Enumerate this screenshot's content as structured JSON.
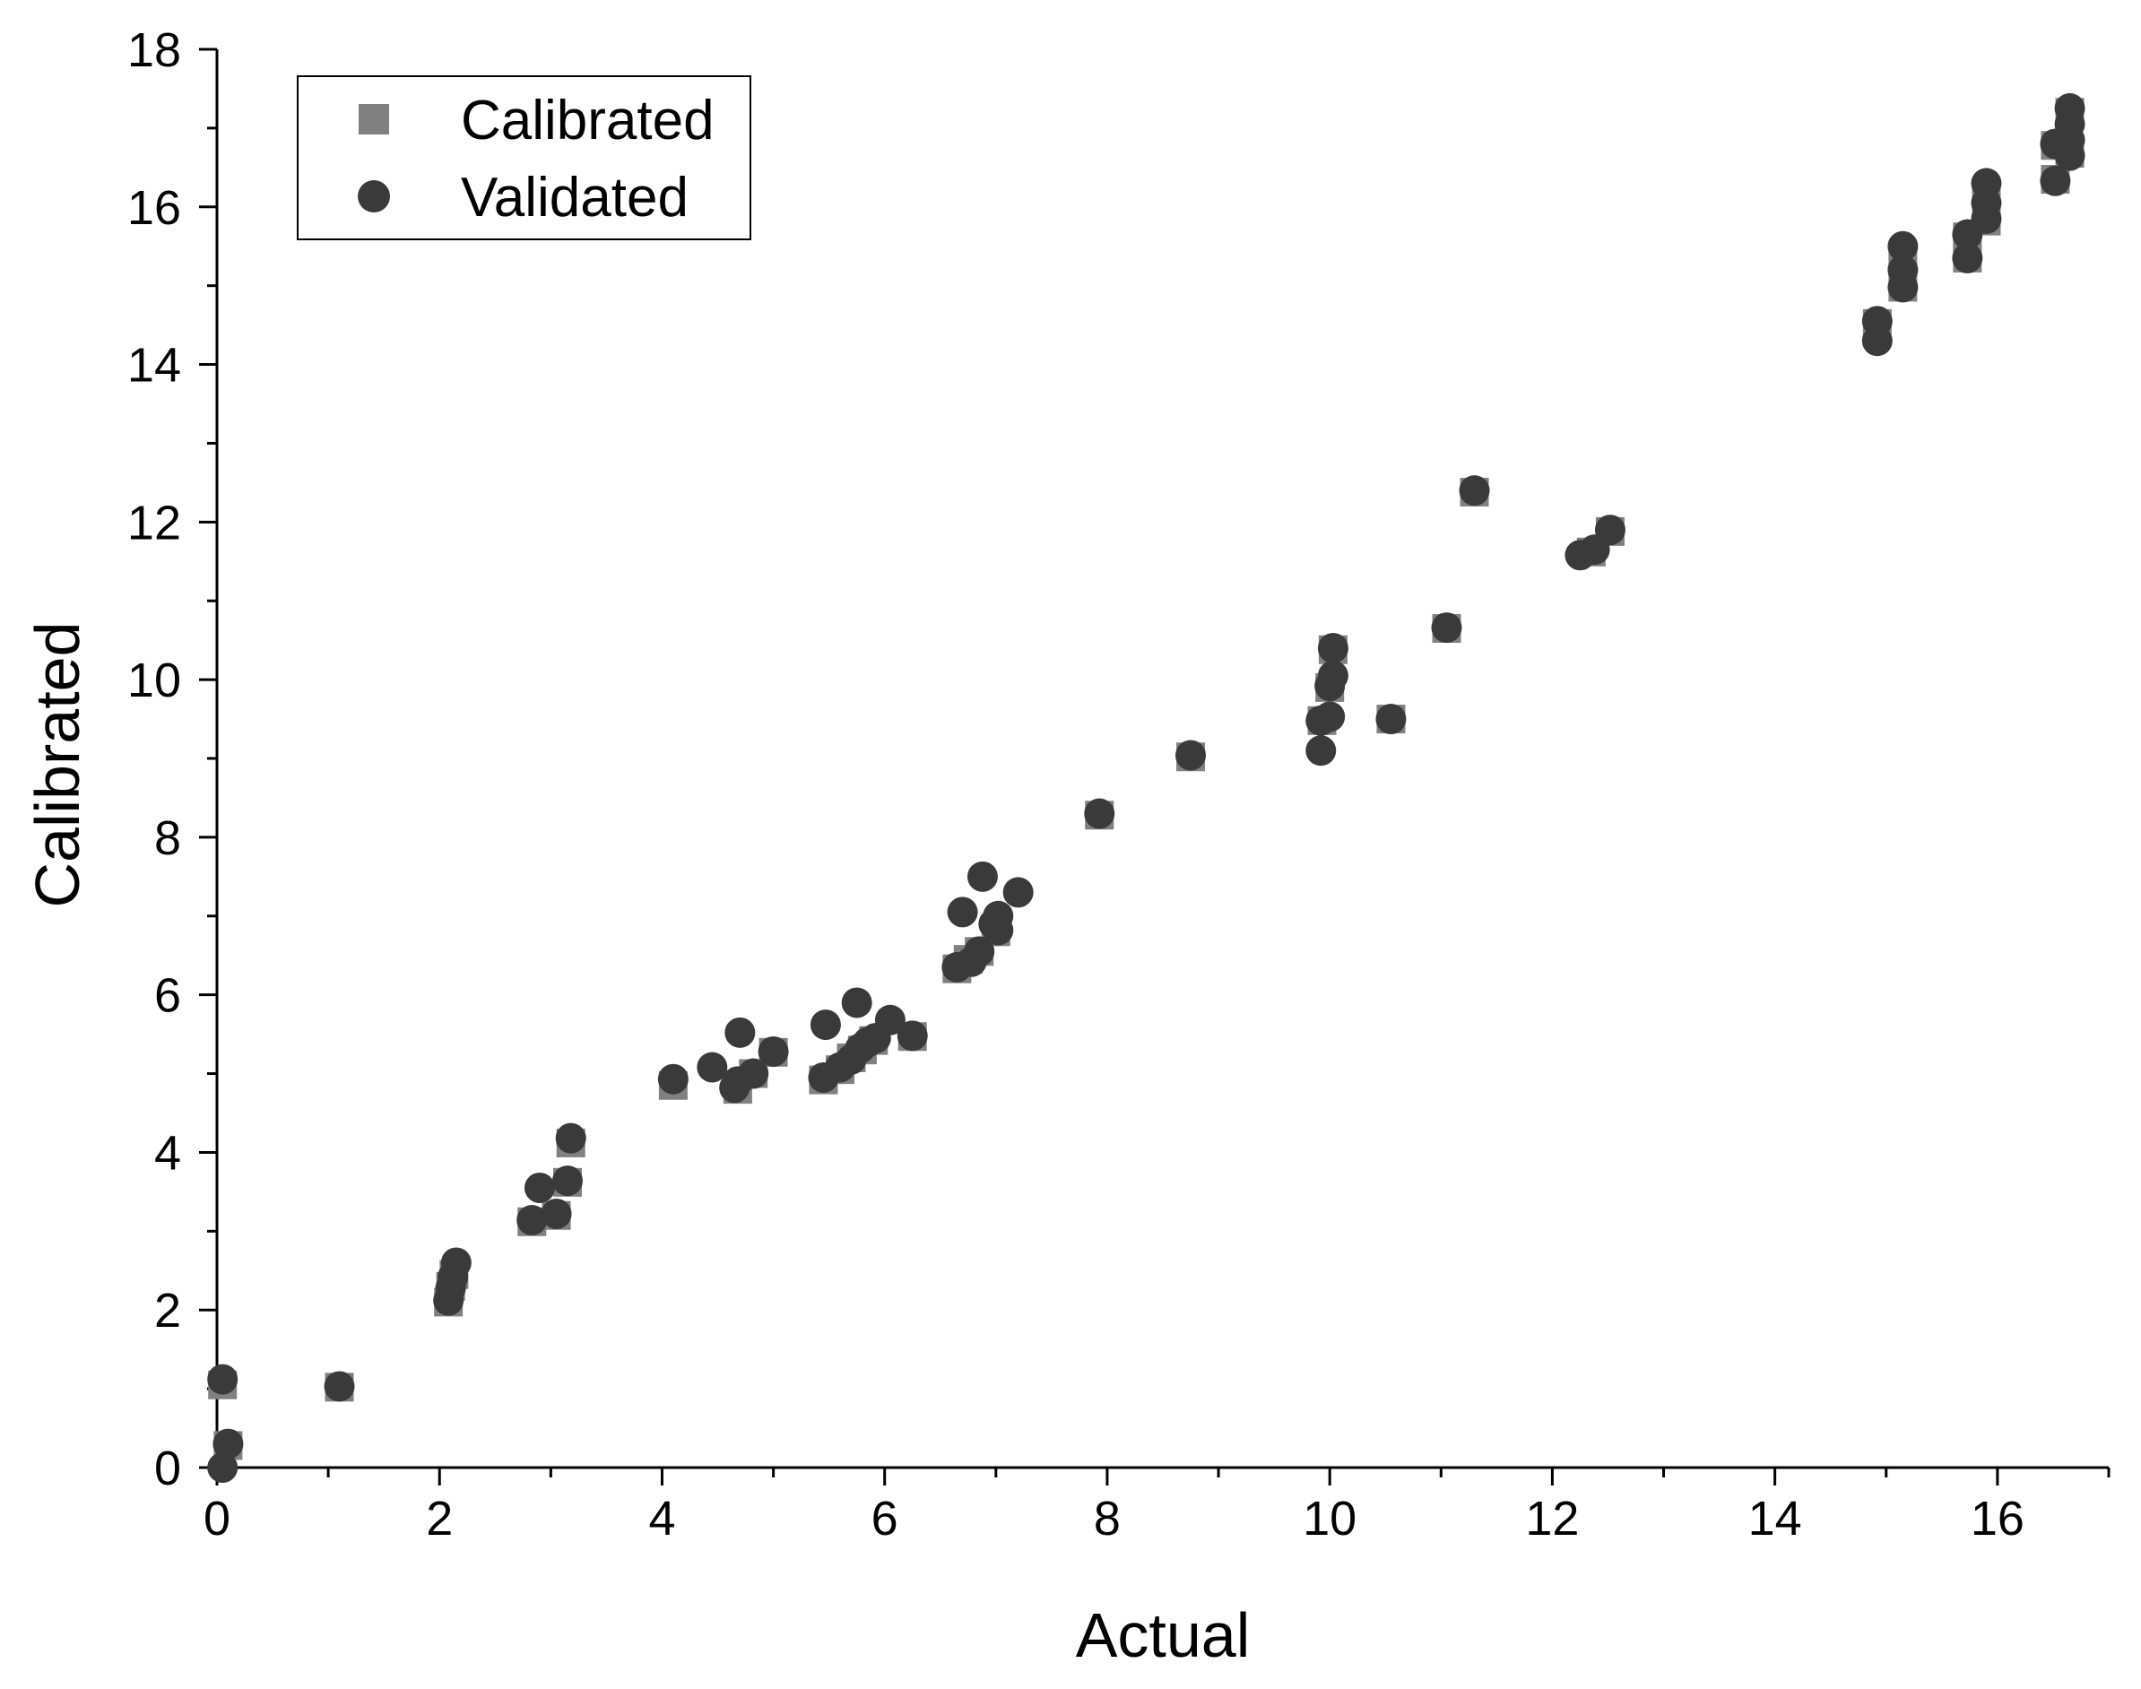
{
  "chart_data": {
    "type": "scatter",
    "title": "",
    "xlabel": "Actual",
    "ylabel": "Calibrated",
    "xlim": [
      0,
      17
    ],
    "ylim": [
      0,
      18
    ],
    "x_ticks": [
      0,
      2,
      4,
      6,
      8,
      10,
      12,
      14,
      16
    ],
    "y_ticks": [
      0,
      2,
      4,
      6,
      8,
      10,
      12,
      14,
      16,
      18
    ],
    "grid": false,
    "legend_position": "top-left",
    "series": [
      {
        "name": "Calibrated",
        "marker": "square",
        "color": "#808080",
        "points": [
          [
            0.05,
            1.05
          ],
          [
            0.1,
            0.28
          ],
          [
            1.1,
            1.02
          ],
          [
            2.08,
            2.1
          ],
          [
            2.1,
            2.3
          ],
          [
            2.13,
            2.45
          ],
          [
            2.83,
            3.12
          ],
          [
            3.05,
            3.2
          ],
          [
            3.15,
            3.62
          ],
          [
            3.18,
            4.12
          ],
          [
            4.1,
            4.85
          ],
          [
            4.68,
            4.8
          ],
          [
            4.82,
            5.0
          ],
          [
            5.0,
            5.27
          ],
          [
            5.45,
            4.92
          ],
          [
            5.6,
            5.05
          ],
          [
            5.7,
            5.2
          ],
          [
            5.8,
            5.3
          ],
          [
            5.9,
            5.42
          ],
          [
            6.25,
            5.47
          ],
          [
            6.65,
            6.33
          ],
          [
            6.75,
            6.45
          ],
          [
            6.85,
            6.55
          ],
          [
            7.0,
            6.8
          ],
          [
            7.93,
            8.28
          ],
          [
            8.75,
            9.02
          ],
          [
            9.93,
            9.48
          ],
          [
            10.0,
            9.9
          ],
          [
            10.03,
            10.38
          ],
          [
            10.55,
            9.5
          ],
          [
            11.05,
            10.65
          ],
          [
            11.3,
            12.38
          ],
          [
            12.35,
            11.62
          ],
          [
            12.52,
            11.88
          ],
          [
            14.92,
            14.52
          ],
          [
            15.15,
            14.98
          ],
          [
            15.15,
            15.3
          ],
          [
            15.73,
            15.35
          ],
          [
            15.73,
            15.62
          ],
          [
            15.9,
            15.82
          ],
          [
            15.9,
            16.05
          ],
          [
            16.52,
            16.35
          ],
          [
            16.52,
            16.78
          ],
          [
            16.65,
            16.68
          ],
          [
            16.65,
            17.2
          ]
        ]
      },
      {
        "name": "Validated",
        "marker": "circle",
        "color": "#3a3a3a",
        "points": [
          [
            0.05,
            1.12
          ],
          [
            0.1,
            0.3
          ],
          [
            0.05,
            0.0
          ],
          [
            1.1,
            1.03
          ],
          [
            2.08,
            2.12
          ],
          [
            2.1,
            2.28
          ],
          [
            2.12,
            2.42
          ],
          [
            2.15,
            2.6
          ],
          [
            2.83,
            3.14
          ],
          [
            2.9,
            3.55
          ],
          [
            3.05,
            3.22
          ],
          [
            3.15,
            3.64
          ],
          [
            3.18,
            4.18
          ],
          [
            4.1,
            4.93
          ],
          [
            4.45,
            5.08
          ],
          [
            4.65,
            4.82
          ],
          [
            4.68,
            4.9
          ],
          [
            4.7,
            5.52
          ],
          [
            4.82,
            5.0
          ],
          [
            5.0,
            5.28
          ],
          [
            5.45,
            4.95
          ],
          [
            5.47,
            5.62
          ],
          [
            5.6,
            5.08
          ],
          [
            5.7,
            5.18
          ],
          [
            5.75,
            5.9
          ],
          [
            5.78,
            5.32
          ],
          [
            5.85,
            5.4
          ],
          [
            5.92,
            5.45
          ],
          [
            6.05,
            5.68
          ],
          [
            6.25,
            5.48
          ],
          [
            6.65,
            6.35
          ],
          [
            6.7,
            7.05
          ],
          [
            6.78,
            6.42
          ],
          [
            6.85,
            6.55
          ],
          [
            6.88,
            7.5
          ],
          [
            6.98,
            6.9
          ],
          [
            7.02,
            7.0
          ],
          [
            7.02,
            6.82
          ],
          [
            7.2,
            7.3
          ],
          [
            7.93,
            8.3
          ],
          [
            8.75,
            9.04
          ],
          [
            9.92,
            9.1
          ],
          [
            9.92,
            9.48
          ],
          [
            10.0,
            9.53
          ],
          [
            10.0,
            9.92
          ],
          [
            10.03,
            10.05
          ],
          [
            10.03,
            10.4
          ],
          [
            10.55,
            9.5
          ],
          [
            11.05,
            10.66
          ],
          [
            11.3,
            12.4
          ],
          [
            12.25,
            11.58
          ],
          [
            12.38,
            11.65
          ],
          [
            12.52,
            11.9
          ],
          [
            14.92,
            14.3
          ],
          [
            14.92,
            14.55
          ],
          [
            15.15,
            14.98
          ],
          [
            15.15,
            15.2
          ],
          [
            15.15,
            15.5
          ],
          [
            15.73,
            15.35
          ],
          [
            15.73,
            15.65
          ],
          [
            15.9,
            15.85
          ],
          [
            15.9,
            16.05
          ],
          [
            15.9,
            16.3
          ],
          [
            16.52,
            16.33
          ],
          [
            16.52,
            16.8
          ],
          [
            16.65,
            16.65
          ],
          [
            16.65,
            16.85
          ],
          [
            16.65,
            17.05
          ],
          [
            16.65,
            17.25
          ]
        ]
      }
    ]
  }
}
